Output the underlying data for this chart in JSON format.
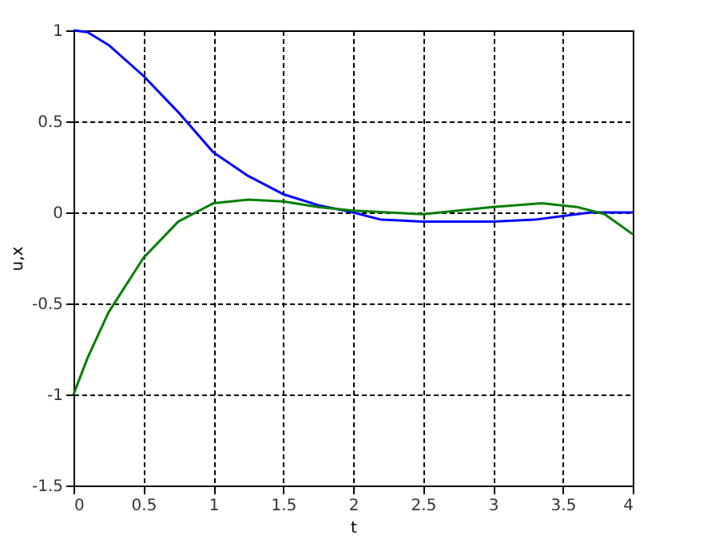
{
  "chart_data": {
    "type": "line",
    "xlabel": "t",
    "ylabel": "u,x",
    "xlim": [
      0,
      4
    ],
    "xticks": [
      0,
      0.5,
      1,
      1.5,
      2,
      2.5,
      3,
      3.5,
      4
    ],
    "ylim": [
      -1.5,
      1
    ],
    "yticks": [
      -1.5,
      -1,
      -0.5,
      0,
      0.5,
      1
    ],
    "grid": true,
    "line_style": "solid",
    "series": [
      {
        "color": "#0000ff",
        "x": [
          0,
          0.1,
          0.25,
          0.5,
          0.75,
          1,
          1.25,
          1.5,
          1.75,
          2,
          2.2,
          2.5,
          3,
          3.3,
          3.5,
          3.7,
          4
        ],
        "values": [
          1,
          0.99,
          0.92,
          0.75,
          0.55,
          0.33,
          0.2,
          0.1,
          0.04,
          0.0,
          -0.04,
          -0.05,
          -0.05,
          -0.04,
          -0.02,
          0,
          0
        ]
      },
      {
        "color": "#007f00",
        "x": [
          0,
          0.1,
          0.25,
          0.5,
          0.75,
          1,
          1.25,
          1.5,
          1.75,
          2,
          2.5,
          3,
          3.35,
          3.6,
          3.8,
          4
        ],
        "values": [
          -1,
          -0.8,
          -0.55,
          -0.25,
          -0.05,
          0.05,
          0.07,
          0.06,
          0.03,
          0.01,
          -0.01,
          0.03,
          0.05,
          0.03,
          -0.01,
          -0.12
        ]
      }
    ]
  }
}
